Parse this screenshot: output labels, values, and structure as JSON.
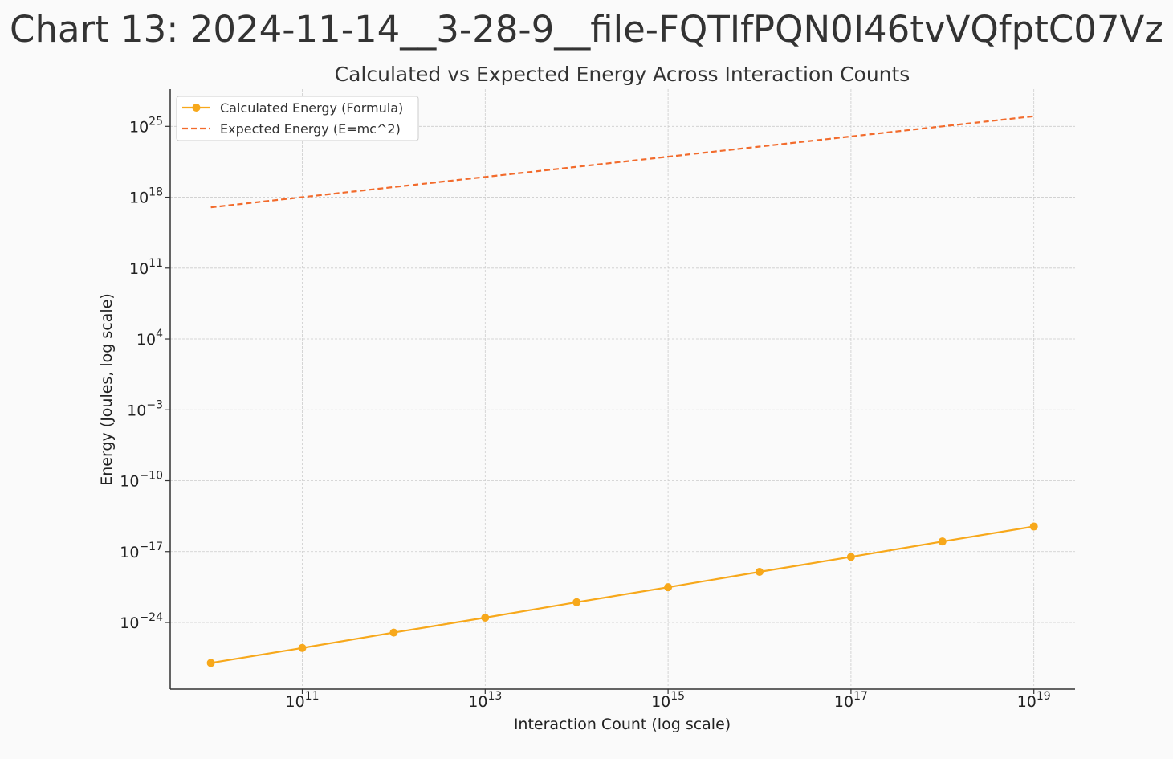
{
  "banner_title": "Chart 13: 2024-11-14__3-28-9__file-FQTIfPQN0I46tvVQfptC07Vz",
  "chart_data": {
    "type": "line",
    "title": "Calculated vs Expected Energy Across Interaction Counts",
    "xlabel": "Interaction Count (log scale)",
    "ylabel": "Energy (Joules, log scale)",
    "x_scale": "log",
    "y_scale": "log",
    "x_tick_exponents": [
      11,
      13,
      15,
      17,
      19
    ],
    "y_tick_exponents": [
      -24,
      -17,
      -10,
      -3,
      4,
      11,
      18,
      25
    ],
    "grid": true,
    "legend_position": "top-left",
    "series": [
      {
        "name": "Calculated Energy (Formula)",
        "style": "solid",
        "marker": "circle",
        "color": "#f7a81b",
        "x": [
          10000000000.0,
          100000000000.0,
          1000000000000.0,
          10000000000000.0,
          100000000000000.0,
          1000000000000000.0,
          1e+16,
          1e+17,
          1e+18,
          1e+19
        ],
        "y": [
          1e-28,
          3e-27,
          1e-25,
          3e-24,
          1e-22,
          3e-21,
          1e-19,
          3e-18,
          1e-16,
          3e-15
        ]
      },
      {
        "name": "Expected Energy (E=mc^2)",
        "style": "dashed",
        "marker": "none",
        "color": "#f26b2c",
        "x": [
          10000000000.0,
          100000000000.0,
          1000000000000.0,
          10000000000000.0,
          100000000000000.0,
          1000000000000000.0,
          1e+16,
          1e+17,
          1e+18,
          1e+19
        ],
        "y": [
          1e+17,
          1e+18,
          1e+19,
          1e+20,
          1e+21,
          1e+22,
          1e+23,
          1e+24,
          1e+25,
          1e+26
        ]
      }
    ]
  }
}
